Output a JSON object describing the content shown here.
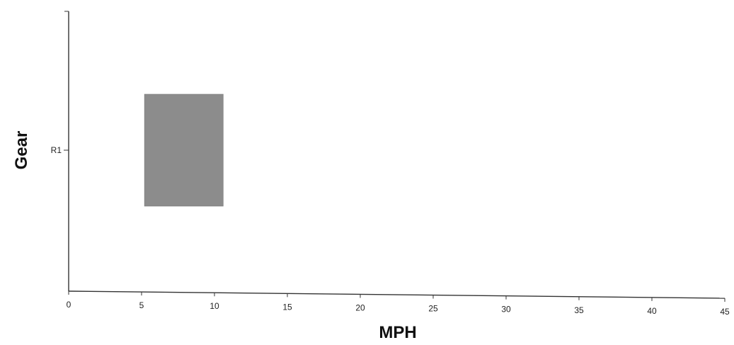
{
  "chart_data": {
    "type": "bar",
    "orientation": "horizontal",
    "title": "",
    "xlabel": "MPH",
    "ylabel": "Gear",
    "xlim": [
      0,
      45
    ],
    "xticks": [
      0,
      5,
      10,
      15,
      20,
      25,
      30,
      35,
      40,
      45
    ],
    "categories": [
      "R1"
    ],
    "series": [
      {
        "category": "R1",
        "start": 5.2,
        "end": 10.6
      }
    ],
    "bar_color": "#8c8c8c",
    "grid": false,
    "legend": "none"
  }
}
